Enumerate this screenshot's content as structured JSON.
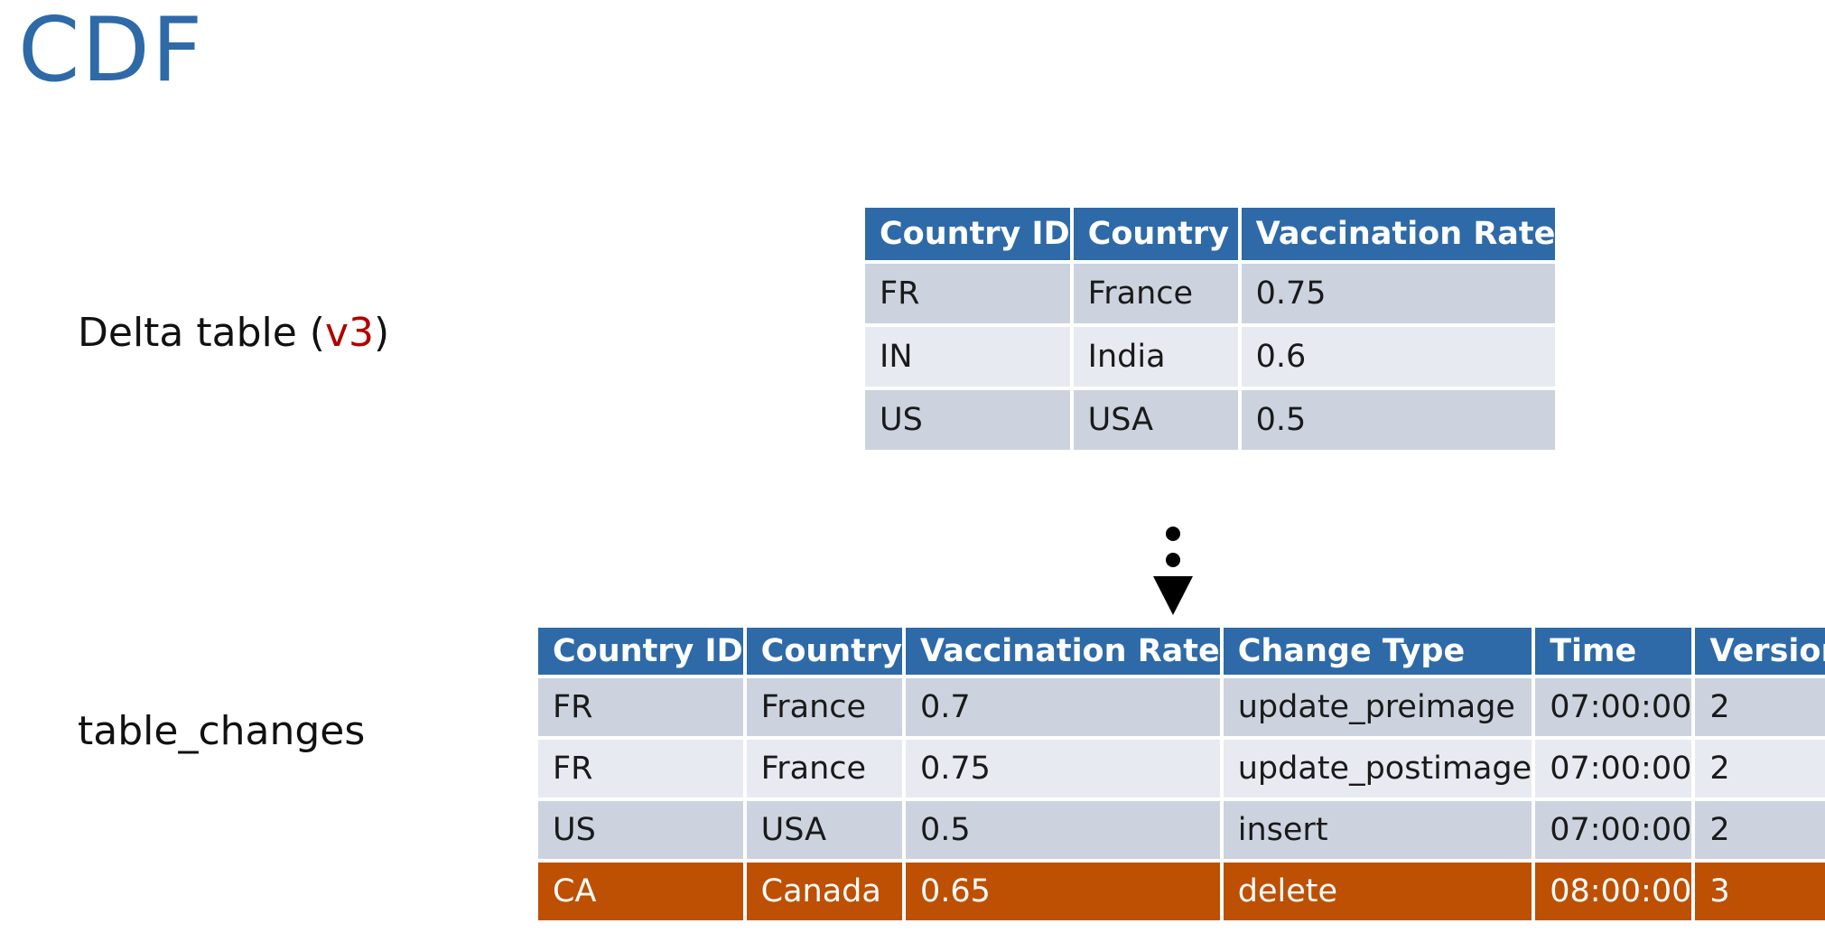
{
  "slide": {
    "title": "CDF"
  },
  "labels": {
    "delta_prefix": "Delta table (",
    "delta_version": "v3",
    "delta_suffix": ")",
    "changes": "table_changes"
  },
  "delta_table": {
    "headers": [
      "Country ID",
      "Country",
      "Vaccination Rate"
    ],
    "rows": [
      [
        "FR",
        "France",
        "0.75"
      ],
      [
        "IN",
        "India",
        "0.6"
      ],
      [
        "US",
        "USA",
        "0.5"
      ]
    ]
  },
  "changes_table": {
    "headers": [
      "Country ID",
      "Country",
      "Vaccination Rate",
      "Change Type",
      "Time",
      "Version"
    ],
    "rows": [
      [
        "FR",
        "France",
        "0.7",
        "update_preimage",
        "07:00:00",
        "2"
      ],
      [
        "FR",
        "France",
        "0.75",
        "update_postimage",
        "07:00:00",
        "2"
      ],
      [
        "US",
        "USA",
        "0.5",
        "insert",
        "07:00:00",
        "2"
      ],
      [
        "CA",
        "Canada",
        "0.65",
        "delete",
        "08:00:00",
        "3"
      ]
    ]
  },
  "colors": {
    "header_blue": "#2e6aa8",
    "row_odd": "#ccd3df",
    "row_even": "#e7eaf0",
    "deleted_row": "#bd5002",
    "version_red": "#b00000"
  },
  "icons": {
    "connector": "dotted-down-arrow-icon"
  }
}
